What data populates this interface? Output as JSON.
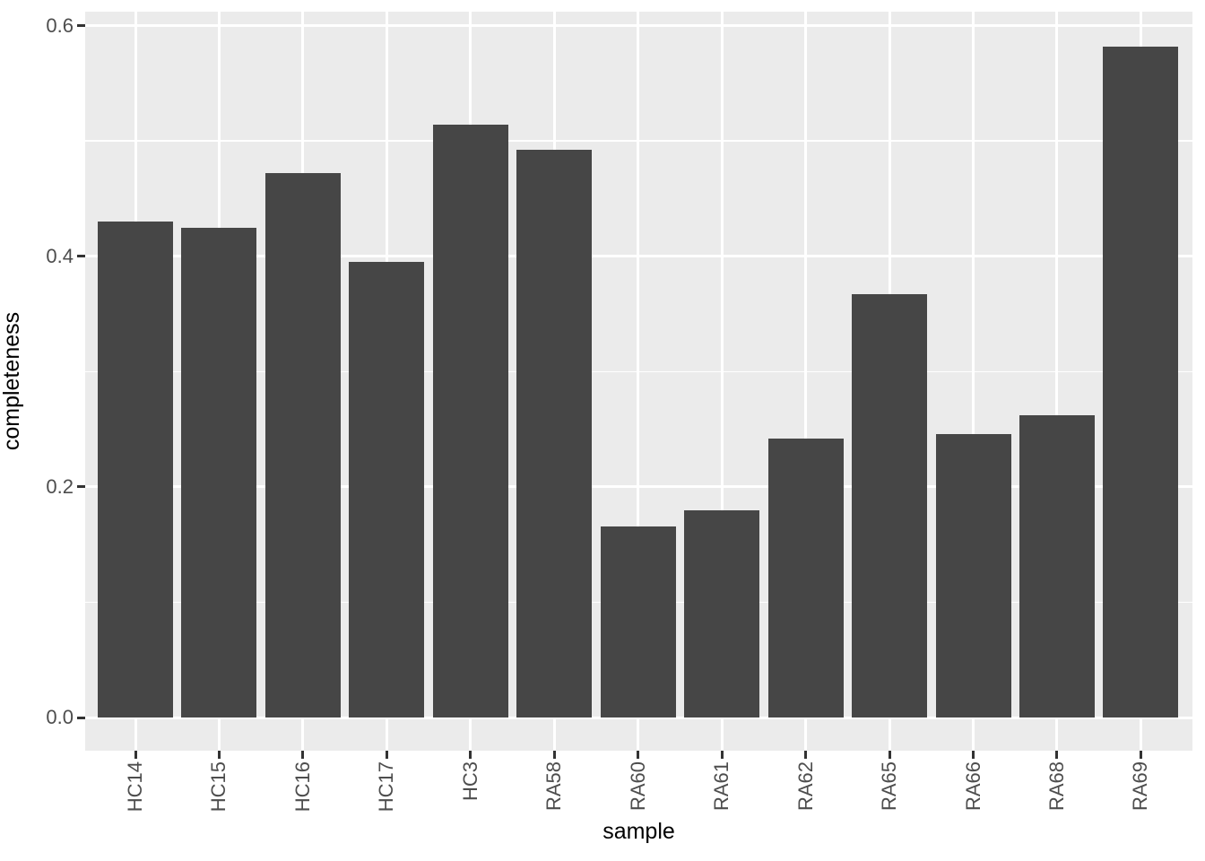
{
  "figure": {
    "background_color": "#ffffff",
    "panel_background_color": "#ebebeb",
    "gridline_color": "#ffffff",
    "bar_color": "#464646",
    "tick_mark_color": "#333333",
    "axis_text_color": "#4d4d4d",
    "axis_title_color": "#000000"
  },
  "chart_data": {
    "type": "bar",
    "title": "",
    "xlabel": "sample",
    "ylabel": "completeness",
    "categories": [
      "HC14",
      "HC15",
      "HC16",
      "HC17",
      "HC3",
      "RA58",
      "RA60",
      "RA61",
      "RA62",
      "RA65",
      "RA66",
      "RA68",
      "RA69"
    ],
    "values": [
      0.43,
      0.425,
      0.472,
      0.395,
      0.514,
      0.492,
      0.166,
      0.18,
      0.242,
      0.367,
      0.246,
      0.262,
      0.582
    ],
    "ylim": [
      0,
      0.6
    ],
    "yticks": {
      "values": [
        0.0,
        0.2,
        0.4,
        0.6
      ],
      "labels": [
        "0.0",
        "0.2",
        "0.4",
        "0.6"
      ]
    },
    "yminor": [
      0.1,
      0.3,
      0.5
    ],
    "grid": "on",
    "legend_position": "none",
    "bar_width_fraction": 0.9
  }
}
